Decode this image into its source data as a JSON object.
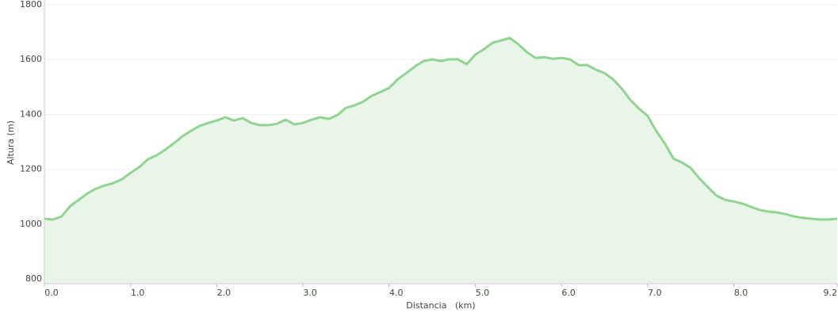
{
  "chart_data": {
    "type": "area",
    "x": [
      0,
      0.1,
      0.2,
      0.3,
      0.4,
      0.5,
      0.6,
      0.7,
      0.8,
      0.9,
      1.0,
      1.1,
      1.2,
      1.3,
      1.4,
      1.5,
      1.6,
      1.7,
      1.8,
      1.9,
      2.0,
      2.1,
      2.2,
      2.3,
      2.4,
      2.5,
      2.6,
      2.7,
      2.8,
      2.9,
      3.0,
      3.1,
      3.2,
      3.3,
      3.4,
      3.5,
      3.6,
      3.7,
      3.8,
      3.9,
      4.0,
      4.1,
      4.2,
      4.3,
      4.4,
      4.5,
      4.6,
      4.7,
      4.8,
      4.9,
      5.0,
      5.1,
      5.2,
      5.3,
      5.4,
      5.5,
      5.6,
      5.7,
      5.8,
      5.9,
      6.0,
      6.1,
      6.2,
      6.3,
      6.4,
      6.5,
      6.6,
      6.7,
      6.8,
      6.9,
      7.0,
      7.1,
      7.2,
      7.3,
      7.4,
      7.5,
      7.6,
      7.7,
      7.8,
      7.9,
      8.0,
      8.1,
      8.2,
      8.3,
      8.4,
      8.5,
      8.6,
      8.7,
      8.8,
      8.9,
      9.0,
      9.1,
      9.2
    ],
    "values": [
      1020,
      1017,
      1028,
      1066,
      1089,
      1112,
      1130,
      1141,
      1150,
      1164,
      1187,
      1208,
      1236,
      1251,
      1271,
      1294,
      1320,
      1340,
      1358,
      1369,
      1378,
      1390,
      1378,
      1387,
      1369,
      1361,
      1361,
      1366,
      1381,
      1364,
      1369,
      1381,
      1390,
      1384,
      1398,
      1424,
      1433,
      1447,
      1468,
      1482,
      1497,
      1528,
      1551,
      1575,
      1595,
      1601,
      1595,
      1601,
      1601,
      1583,
      1618,
      1638,
      1661,
      1670,
      1679,
      1656,
      1627,
      1606,
      1609,
      1603,
      1606,
      1601,
      1580,
      1580,
      1563,
      1551,
      1528,
      1494,
      1453,
      1421,
      1395,
      1340,
      1294,
      1239,
      1225,
      1205,
      1167,
      1135,
      1104,
      1089,
      1083,
      1075,
      1063,
      1052,
      1046,
      1043,
      1037,
      1028,
      1023,
      1020,
      1017,
      1017,
      1020
    ],
    "color": "#8fd48f",
    "fill": "#e8f5e8",
    "x_label": "Distancia   (km)",
    "y_label": "Altura (m)",
    "xlim": [
      0,
      9.2
    ],
    "ylim": [
      783,
      1800
    ],
    "xticks": [
      {
        "value": 0,
        "label": "0.0"
      },
      {
        "value": 1,
        "label": "1.0"
      },
      {
        "value": 2,
        "label": "2.0"
      },
      {
        "value": 3,
        "label": "3.0"
      },
      {
        "value": 4,
        "label": "4.0"
      },
      {
        "value": 5,
        "label": "5.0"
      },
      {
        "value": 6,
        "label": "6.0"
      },
      {
        "value": 7,
        "label": "7.0"
      },
      {
        "value": 8,
        "label": "8.0"
      },
      9.2
    ],
    "yticks": [
      800,
      1000,
      1200,
      1400,
      1600,
      1800
    ],
    "grid": true
  }
}
